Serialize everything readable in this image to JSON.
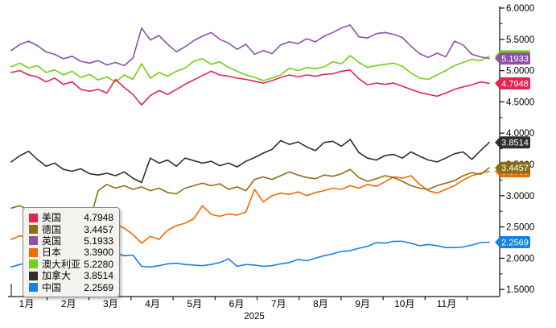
{
  "chart_data": {
    "type": "line",
    "title": "",
    "year_label": "2025",
    "x_tick_labels": [
      "1月",
      "2月",
      "3月",
      "4月",
      "5月",
      "6月",
      "7月",
      "8月",
      "9月",
      "10月",
      "11月"
    ],
    "y_axis": {
      "min": 1.5,
      "max": 6.0,
      "major_step": 0.5,
      "minor_step": 0.25,
      "tick_labels": [
        "6.0000",
        "5.5000",
        "5.0000",
        "4.5000",
        "4.0000",
        "3.5000",
        "3.0000",
        "2.5000",
        "2.0000",
        "1.5000"
      ]
    },
    "grid": false,
    "legend_position": "bottom-left-floating",
    "series": [
      {
        "id": "us",
        "name": "美国",
        "color": "#e5234e",
        "last_label": "4.7948",
        "values": [
          4.97,
          5.0,
          4.93,
          4.9,
          4.82,
          4.88,
          4.78,
          4.82,
          4.7,
          4.67,
          4.7,
          4.64,
          4.86,
          4.73,
          4.62,
          4.45,
          4.6,
          4.68,
          4.62,
          4.7,
          4.78,
          4.85,
          4.92,
          4.99,
          4.93,
          4.91,
          4.88,
          4.86,
          4.83,
          4.8,
          4.84,
          4.89,
          4.93,
          4.9,
          4.93,
          4.91,
          4.94,
          4.95,
          4.99,
          5.01,
          4.87,
          4.77,
          4.8,
          4.78,
          4.8,
          4.75,
          4.7,
          4.65,
          4.62,
          4.59,
          4.64,
          4.7,
          4.74,
          4.77,
          4.82,
          4.7948
        ]
      },
      {
        "id": "de",
        "name": "德国",
        "color": "#8f6d17",
        "last_label": "3.4457",
        "values": [
          2.8,
          2.84,
          2.76,
          2.72,
          2.68,
          2.72,
          2.65,
          2.61,
          2.64,
          2.58,
          3.08,
          3.18,
          3.12,
          3.16,
          3.1,
          3.14,
          3.08,
          3.12,
          3.05,
          3.03,
          3.12,
          3.16,
          3.2,
          3.16,
          3.19,
          3.1,
          3.14,
          3.08,
          3.26,
          3.3,
          3.26,
          3.32,
          3.38,
          3.33,
          3.29,
          3.27,
          3.33,
          3.31,
          3.35,
          3.42,
          3.29,
          3.23,
          3.27,
          3.32,
          3.29,
          3.23,
          3.16,
          3.12,
          3.1,
          3.16,
          3.2,
          3.24,
          3.32,
          3.37,
          3.34,
          3.4457
        ]
      },
      {
        "id": "uk",
        "name": "英国",
        "color": "#8a52a8",
        "last_label": "5.1933",
        "values": [
          5.32,
          5.42,
          5.47,
          5.4,
          5.3,
          5.26,
          5.19,
          5.23,
          5.15,
          5.12,
          5.16,
          5.09,
          5.13,
          5.08,
          5.2,
          5.68,
          5.49,
          5.56,
          5.42,
          5.3,
          5.38,
          5.48,
          5.55,
          5.61,
          5.5,
          5.44,
          5.34,
          5.42,
          5.26,
          5.32,
          5.27,
          5.41,
          5.46,
          5.43,
          5.51,
          5.46,
          5.55,
          5.61,
          5.68,
          5.73,
          5.54,
          5.52,
          5.59,
          5.61,
          5.58,
          5.53,
          5.39,
          5.27,
          5.21,
          5.28,
          5.22,
          5.47,
          5.41,
          5.26,
          5.22,
          5.1933
        ]
      },
      {
        "id": "jp",
        "name": "日本",
        "color": "#f26a02",
        "last_label": "3.3900",
        "values": [
          2.3,
          2.36,
          2.32,
          2.38,
          2.42,
          2.39,
          2.45,
          2.49,
          2.53,
          2.5,
          2.56,
          2.61,
          2.55,
          2.48,
          2.38,
          2.24,
          2.35,
          2.3,
          2.45,
          2.52,
          2.56,
          2.63,
          2.84,
          2.7,
          2.67,
          2.71,
          2.69,
          2.74,
          3.1,
          2.9,
          3.0,
          3.04,
          3.02,
          3.06,
          3.0,
          3.05,
          3.08,
          3.12,
          3.1,
          3.16,
          3.12,
          3.18,
          3.15,
          3.22,
          3.3,
          3.28,
          3.32,
          3.18,
          3.08,
          3.04,
          3.1,
          3.16,
          3.25,
          3.32,
          3.36,
          3.39
        ]
      },
      {
        "id": "au",
        "name": "澳大利亚",
        "color": "#74cf12",
        "last_label": "5.2280",
        "values": [
          5.06,
          5.12,
          5.04,
          5.08,
          4.97,
          5.01,
          4.93,
          4.99,
          4.89,
          4.94,
          4.85,
          4.9,
          4.82,
          4.93,
          4.86,
          5.11,
          4.88,
          4.97,
          4.91,
          4.99,
          5.04,
          5.15,
          5.19,
          5.1,
          5.14,
          5.05,
          4.99,
          4.93,
          4.89,
          4.84,
          4.88,
          4.93,
          5.04,
          5.0,
          5.05,
          5.03,
          5.06,
          5.14,
          5.11,
          5.24,
          5.13,
          5.05,
          5.08,
          5.1,
          5.12,
          5.07,
          4.96,
          4.88,
          4.86,
          4.93,
          5.0,
          5.08,
          5.13,
          5.18,
          5.16,
          5.228
        ]
      },
      {
        "id": "ca",
        "name": "加拿大",
        "color": "#2f2f2f",
        "last_label": "3.8514",
        "values": [
          3.54,
          3.64,
          3.71,
          3.58,
          3.47,
          3.52,
          3.42,
          3.39,
          3.43,
          3.35,
          3.33,
          3.36,
          3.32,
          3.38,
          3.28,
          3.21,
          3.6,
          3.52,
          3.57,
          3.47,
          3.6,
          3.56,
          3.52,
          3.55,
          3.48,
          3.52,
          3.46,
          3.55,
          3.61,
          3.68,
          3.74,
          3.88,
          3.82,
          3.86,
          3.78,
          3.72,
          3.85,
          3.87,
          3.79,
          3.9,
          3.69,
          3.6,
          3.57,
          3.64,
          3.66,
          3.6,
          3.7,
          3.63,
          3.57,
          3.54,
          3.6,
          3.67,
          3.7,
          3.58,
          3.72,
          3.8514
        ]
      },
      {
        "id": "cn",
        "name": "中国",
        "color": "#1681e8",
        "last_label": "2.2569",
        "values": [
          1.86,
          1.9,
          1.93,
          1.96,
          1.99,
          2.02,
          2.05,
          2.07,
          2.08,
          2.06,
          2.08,
          2.07,
          2.08,
          2.04,
          2.05,
          1.87,
          1.86,
          1.88,
          1.91,
          1.92,
          1.9,
          1.89,
          1.88,
          1.9,
          1.93,
          1.99,
          1.87,
          1.9,
          1.89,
          1.87,
          1.88,
          1.91,
          1.93,
          1.98,
          1.96,
          2.0,
          2.04,
          2.07,
          2.11,
          2.12,
          2.16,
          2.19,
          2.25,
          2.24,
          2.27,
          2.27,
          2.24,
          2.2,
          2.22,
          2.2,
          2.17,
          2.17,
          2.18,
          2.21,
          2.25,
          2.2569
        ]
      }
    ],
    "legend": {
      "entries": [
        {
          "name": "美国",
          "value": "4.7948"
        },
        {
          "name": "德国",
          "value": "3.4457"
        },
        {
          "name": "英国",
          "value": "5.1933"
        },
        {
          "name": "日本",
          "value": "3.3900"
        },
        {
          "name": "澳大利亚",
          "value": "5.2280"
        },
        {
          "name": "加拿大",
          "value": "3.8514"
        },
        {
          "name": "中国",
          "value": "2.2569"
        }
      ]
    }
  }
}
